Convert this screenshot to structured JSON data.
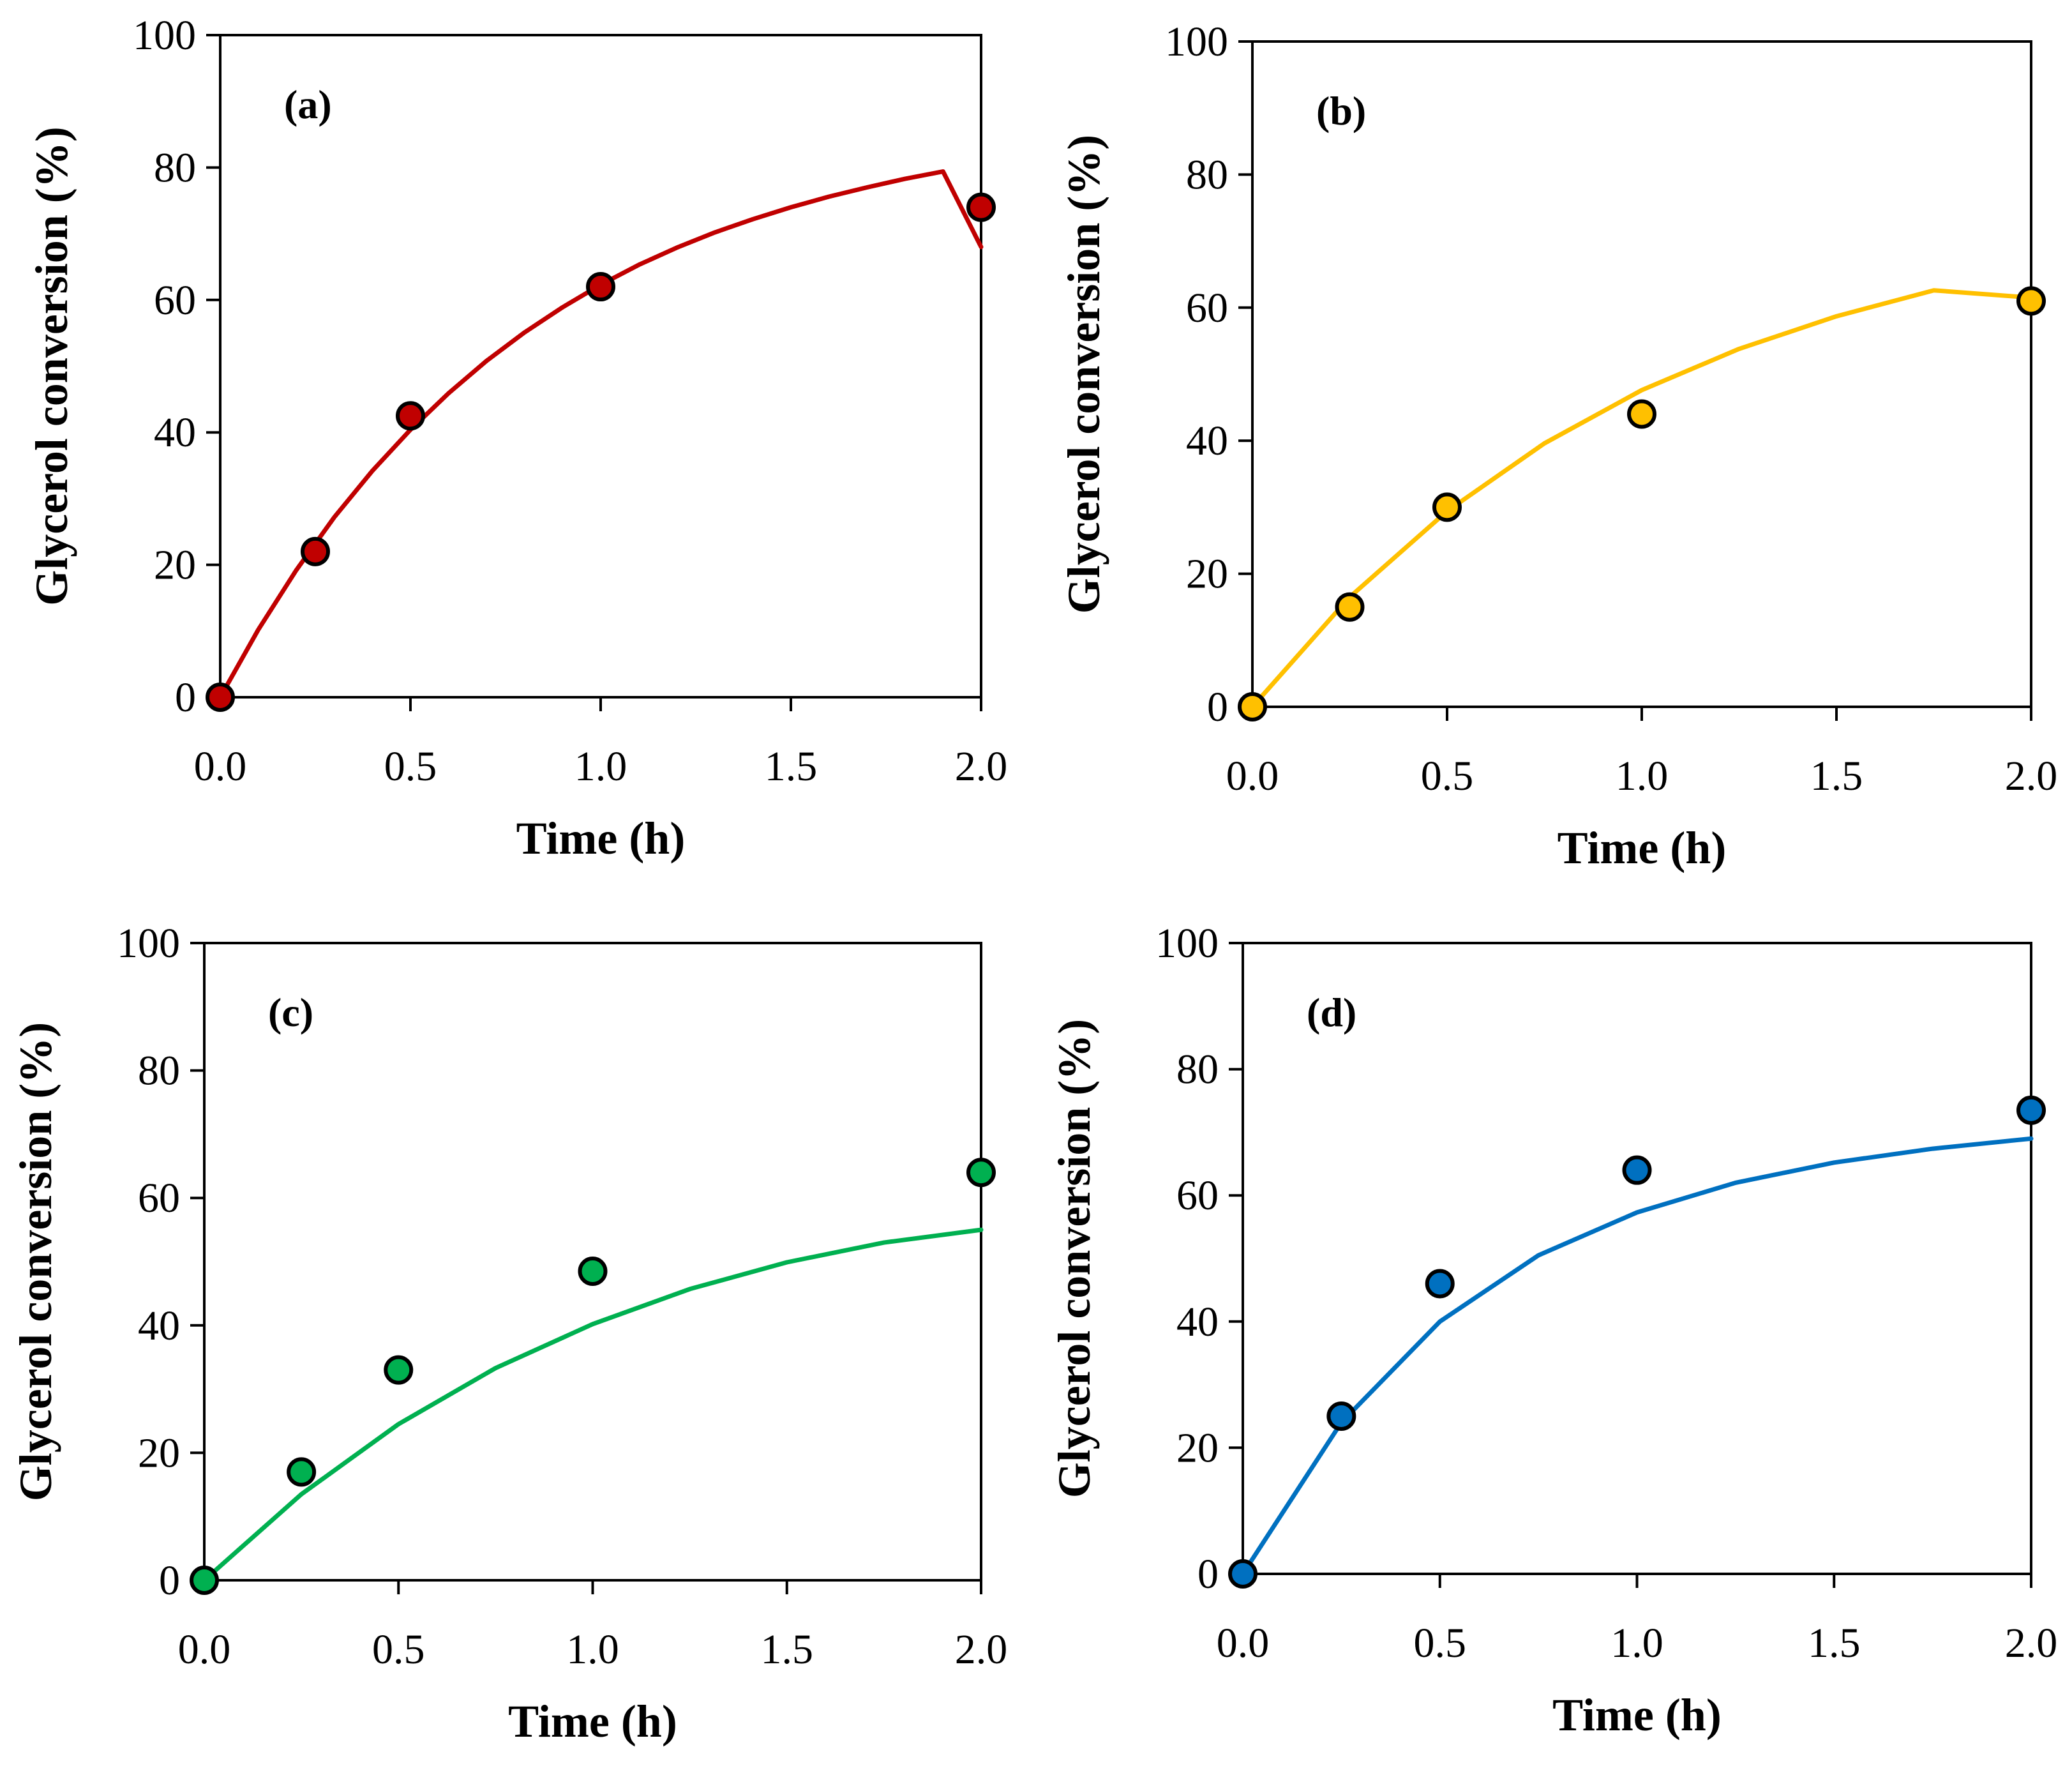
{
  "chart_data": [
    {
      "type": "scatter",
      "panel": "(a)",
      "xlabel": "Time (h)",
      "ylabel": "Glycerol conversion (%)",
      "xlim": [
        0,
        2
      ],
      "ylim": [
        0,
        100
      ],
      "xticks": [
        "0.0",
        "0.5",
        "1.0",
        "1.5",
        "2.0"
      ],
      "yticks": [
        "0",
        "20",
        "40",
        "60",
        "80",
        "100"
      ],
      "color": "#C00000",
      "points": {
        "x": [
          0,
          0.25,
          0.5,
          1.0,
          2.0
        ],
        "y": [
          0,
          22,
          42.5,
          62,
          74
        ]
      },
      "fit": {
        "x": [
          0,
          0.1,
          0.2,
          0.3,
          0.4,
          0.5,
          0.6,
          0.7,
          0.8,
          0.9,
          1.0,
          1.1,
          1.2,
          1.3,
          1.4,
          1.5,
          1.6,
          1.7,
          1.8,
          1.9,
          2.0
        ],
        "y": [
          0,
          10.2,
          19.2,
          27.2,
          34.2,
          40.4,
          45.9,
          50.8,
          55.1,
          58.9,
          62.3,
          65.3,
          67.9,
          70.2,
          72.2,
          74.0,
          75.6,
          77.0,
          78.3,
          79.4,
          68
        ]
      }
    },
    {
      "type": "scatter",
      "panel": "(b)",
      "xlabel": "Time (h)",
      "ylabel": "Glycerol conversion (%)",
      "xlim": [
        0,
        2
      ],
      "ylim": [
        0,
        100
      ],
      "xticks": [
        "0.0",
        "0.5",
        "1.0",
        "1.5",
        "2.0"
      ],
      "yticks": [
        "0",
        "20",
        "40",
        "60",
        "80",
        "100"
      ],
      "color": "#FFC000",
      "points": {
        "x": [
          0,
          0.25,
          0.5,
          1.0,
          2.0
        ],
        "y": [
          0,
          15,
          30,
          44,
          61
        ]
      },
      "fit": {
        "x": [
          0,
          0.25,
          0.5,
          0.75,
          1.0,
          1.25,
          1.5,
          1.75,
          2.0
        ],
        "y": [
          0,
          16.5,
          29.4,
          39.6,
          47.6,
          53.8,
          58.7,
          62.6,
          61.5
        ]
      }
    },
    {
      "type": "scatter",
      "panel": "(c)",
      "xlabel": "Time (h)",
      "ylabel": "Glycerol conversion (%)",
      "xlim": [
        0,
        2
      ],
      "ylim": [
        0,
        100
      ],
      "xticks": [
        "0.0",
        "0.5",
        "1.0",
        "1.5",
        "2.0"
      ],
      "yticks": [
        "0",
        "20",
        "40",
        "60",
        "80",
        "100"
      ],
      "color": "#00B050",
      "points": {
        "x": [
          0,
          0.25,
          0.5,
          1.0,
          2.0
        ],
        "y": [
          0,
          17,
          33,
          48.5,
          64
        ]
      },
      "fit": {
        "x": [
          0,
          0.25,
          0.5,
          0.75,
          1.0,
          1.25,
          1.5,
          1.75,
          2.0
        ],
        "y": [
          0,
          13.5,
          24.5,
          33.3,
          40.2,
          45.7,
          49.9,
          53.0,
          55.0
        ]
      }
    },
    {
      "type": "scatter",
      "panel": "(d)",
      "xlabel": "Time (h)",
      "ylabel": "Glycerol conversion (%)",
      "xlim": [
        0,
        2
      ],
      "ylim": [
        0,
        100
      ],
      "xticks": [
        "0.0",
        "0.5",
        "1.0",
        "1.5",
        "2.0"
      ],
      "yticks": [
        "0",
        "20",
        "40",
        "60",
        "80",
        "100"
      ],
      "color": "#0070C0",
      "points": {
        "x": [
          0,
          0.25,
          0.5,
          1.0,
          2.0
        ],
        "y": [
          0,
          25,
          46,
          64,
          73.5
        ]
      },
      "fit": {
        "x": [
          0,
          0.25,
          0.5,
          0.75,
          1.0,
          1.25,
          1.5,
          1.75,
          2.0
        ],
        "y": [
          0,
          24.0,
          40.0,
          50.5,
          57.3,
          62.0,
          65.2,
          67.4,
          69.0
        ]
      }
    }
  ]
}
